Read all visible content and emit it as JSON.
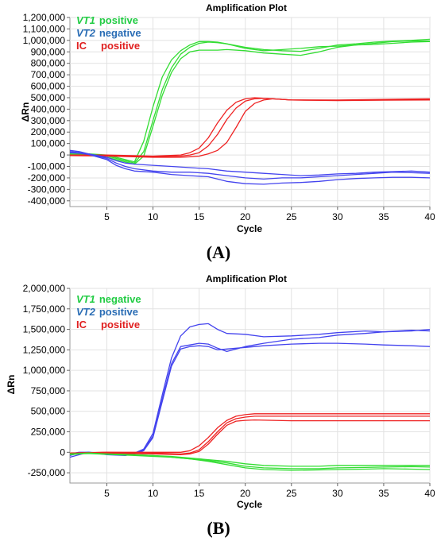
{
  "figure": {
    "panel_labels": [
      "(A)",
      "(B)"
    ]
  },
  "chart_data": [
    {
      "type": "line",
      "title": "Amplification Plot",
      "xlabel": "Cycle",
      "ylabel": "ΔRn",
      "xlim": [
        1,
        40
      ],
      "ylim": [
        -450000,
        1200000
      ],
      "xticks": [
        5,
        10,
        15,
        20,
        25,
        30,
        35,
        40
      ],
      "xtick_labels": [
        "5",
        "10",
        "15",
        "20",
        "25",
        "30",
        "35",
        "40"
      ],
      "yticks": [
        1200000,
        1100000,
        1000000,
        900000,
        800000,
        700000,
        600000,
        500000,
        400000,
        300000,
        200000,
        100000,
        0,
        -100000,
        -200000,
        -300000,
        -400000
      ],
      "ytick_labels": [
        "1,200,000",
        "1,100,000",
        "1,000,000",
        "900,000",
        "800,000",
        "700,000",
        "600,000",
        "500,000",
        "400,000",
        "300,000",
        "200,000",
        "100,000",
        "0",
        "-100,000",
        "-200,000",
        "-300,000",
        "-400,000"
      ],
      "legend": [
        {
          "target": "VT1",
          "status": "positive",
          "color": "#22cc44"
        },
        {
          "target": "VT2",
          "status": "negative",
          "color": "#2a6db5"
        },
        {
          "target": "IC",
          "status": "positive",
          "color": "#e02020"
        }
      ],
      "legend_position": "top-left",
      "grid": true,
      "series": [
        {
          "color": "#33dd33",
          "x": [
            1,
            3,
            5,
            7,
            8,
            9,
            10,
            11,
            12,
            13,
            14,
            15,
            16,
            17,
            18,
            20,
            22,
            24,
            26,
            28,
            30,
            32,
            34,
            36,
            38,
            40
          ],
          "y": [
            20000,
            10000,
            0,
            -40000,
            -60000,
            120000,
            420000,
            680000,
            830000,
            910000,
            960000,
            990000,
            990000,
            985000,
            970000,
            940000,
            920000,
            910000,
            905000,
            930000,
            960000,
            970000,
            985000,
            995000,
            1000000,
            1010000
          ]
        },
        {
          "color": "#33dd33",
          "x": [
            1,
            3,
            5,
            7,
            8,
            9,
            10,
            11,
            12,
            13,
            14,
            15,
            16,
            17,
            18,
            20,
            22,
            24,
            26,
            28,
            30,
            32,
            34,
            36,
            38,
            40
          ],
          "y": [
            10000,
            5000,
            -10000,
            -50000,
            -70000,
            30000,
            300000,
            570000,
            760000,
            880000,
            940000,
            975000,
            985000,
            980000,
            970000,
            930000,
            910000,
            920000,
            930000,
            945000,
            950000,
            960000,
            965000,
            975000,
            985000,
            990000
          ]
        },
        {
          "color": "#33dd33",
          "x": [
            1,
            3,
            5,
            7,
            8,
            9,
            10,
            11,
            12,
            13,
            14,
            15,
            16,
            17,
            18,
            20,
            22,
            24,
            26,
            28,
            30,
            32,
            34,
            36,
            38,
            40
          ],
          "y": [
            5000,
            0,
            -20000,
            -60000,
            -80000,
            -10000,
            250000,
            520000,
            720000,
            840000,
            900000,
            915000,
            915000,
            915000,
            920000,
            910000,
            890000,
            880000,
            870000,
            900000,
            940000,
            960000,
            975000,
            990000,
            995000,
            995000
          ]
        },
        {
          "color": "#ee2222",
          "x": [
            1,
            5,
            10,
            13,
            14,
            15,
            16,
            17,
            18,
            19,
            20,
            21,
            22,
            23,
            25,
            30,
            35,
            40
          ],
          "y": [
            0,
            0,
            -10000,
            0,
            20000,
            60000,
            150000,
            280000,
            390000,
            460000,
            490000,
            500000,
            495000,
            490000,
            480000,
            480000,
            485000,
            490000
          ]
        },
        {
          "color": "#ee2222",
          "x": [
            1,
            5,
            10,
            13,
            14,
            15,
            16,
            17,
            18,
            19,
            20,
            21,
            22,
            23,
            25,
            30,
            35,
            40
          ],
          "y": [
            0,
            -5000,
            -15000,
            -10000,
            0,
            20000,
            80000,
            180000,
            310000,
            410000,
            470000,
            490000,
            495000,
            490000,
            480000,
            478000,
            480000,
            485000
          ]
        },
        {
          "color": "#ee2222",
          "x": [
            1,
            5,
            10,
            13,
            14,
            15,
            16,
            17,
            18,
            19,
            20,
            21,
            22,
            23,
            25,
            30,
            35,
            40
          ],
          "y": [
            -5000,
            -10000,
            -20000,
            -20000,
            -15000,
            -10000,
            10000,
            40000,
            110000,
            240000,
            380000,
            450000,
            480000,
            490000,
            480000,
            475000,
            478000,
            480000
          ]
        },
        {
          "color": "#4444ee",
          "x": [
            1,
            2,
            3,
            5,
            6,
            7,
            8,
            10,
            12,
            14,
            16,
            18,
            20,
            22,
            24,
            26,
            28,
            30,
            32,
            34,
            36,
            38,
            40
          ],
          "y": [
            40000,
            30000,
            10000,
            -20000,
            -50000,
            -70000,
            -80000,
            -90000,
            -100000,
            -110000,
            -120000,
            -140000,
            -150000,
            -160000,
            -170000,
            -180000,
            -175000,
            -165000,
            -160000,
            -150000,
            -145000,
            -140000,
            -150000
          ]
        },
        {
          "color": "#4444ee",
          "x": [
            1,
            2,
            3,
            5,
            6,
            7,
            8,
            10,
            12,
            14,
            16,
            18,
            20,
            22,
            24,
            26,
            28,
            30,
            32,
            34,
            36,
            38,
            40
          ],
          "y": [
            30000,
            20000,
            10000,
            -30000,
            -70000,
            -100000,
            -120000,
            -140000,
            -150000,
            -150000,
            -160000,
            -180000,
            -200000,
            -210000,
            -200000,
            -200000,
            -190000,
            -180000,
            -170000,
            -160000,
            -150000,
            -155000,
            -160000
          ]
        },
        {
          "color": "#4444ee",
          "x": [
            1,
            2,
            3,
            5,
            6,
            7,
            8,
            10,
            12,
            14,
            16,
            18,
            20,
            22,
            24,
            26,
            28,
            30,
            32,
            34,
            36,
            38,
            40
          ],
          "y": [
            20000,
            15000,
            5000,
            -40000,
            -90000,
            -120000,
            -140000,
            -150000,
            -170000,
            -180000,
            -190000,
            -230000,
            -250000,
            -255000,
            -245000,
            -240000,
            -230000,
            -215000,
            -205000,
            -200000,
            -195000,
            -195000,
            -200000
          ]
        }
      ]
    },
    {
      "type": "line",
      "title": "Amplification Plot",
      "xlabel": "Cycle",
      "ylabel": "ΔRn",
      "xlim": [
        1,
        40
      ],
      "ylim": [
        -375000,
        2000000
      ],
      "xticks": [
        5,
        10,
        15,
        20,
        25,
        30,
        35,
        40
      ],
      "xtick_labels": [
        "5",
        "10",
        "15",
        "20",
        "25",
        "30",
        "35",
        "40"
      ],
      "yticks": [
        2000000,
        1750000,
        1500000,
        1250000,
        1000000,
        750000,
        500000,
        250000,
        0,
        -250000
      ],
      "ytick_labels": [
        "2,000,000",
        "1,750,000",
        "1,500,000",
        "1,250,000",
        "1,000,000",
        "750,000",
        "500,000",
        "250,000",
        "0",
        "-250,000"
      ],
      "legend": [
        {
          "target": "VT1",
          "status": "negative",
          "color": "#22cc44"
        },
        {
          "target": "VT2",
          "status": "positive",
          "color": "#2a6db5"
        },
        {
          "target": "IC",
          "status": "positive",
          "color": "#e02020"
        }
      ],
      "legend_position": "top-left",
      "grid": true,
      "series": [
        {
          "color": "#4444ee",
          "x": [
            1,
            2,
            3,
            5,
            7,
            8,
            9,
            10,
            11,
            12,
            13,
            14,
            15,
            16,
            17,
            18,
            20,
            22,
            25,
            28,
            30,
            33,
            35,
            38,
            40
          ],
          "y": [
            -40000,
            -10000,
            0,
            -10000,
            -20000,
            -10000,
            40000,
            230000,
            700000,
            1150000,
            1420000,
            1530000,
            1560000,
            1570000,
            1500000,
            1450000,
            1440000,
            1410000,
            1420000,
            1440000,
            1460000,
            1480000,
            1470000,
            1490000,
            1480000
          ]
        },
        {
          "color": "#4444ee",
          "x": [
            1,
            2,
            3,
            5,
            7,
            8,
            9,
            10,
            11,
            12,
            13,
            14,
            15,
            16,
            17,
            18,
            20,
            22,
            25,
            28,
            30,
            33,
            35,
            38,
            40
          ],
          "y": [
            -20000,
            0,
            0,
            -20000,
            -30000,
            -10000,
            30000,
            200000,
            650000,
            1080000,
            1290000,
            1310000,
            1330000,
            1320000,
            1270000,
            1230000,
            1290000,
            1330000,
            1380000,
            1400000,
            1430000,
            1450000,
            1470000,
            1480000,
            1500000
          ]
        },
        {
          "color": "#4444ee",
          "x": [
            1,
            2,
            3,
            5,
            7,
            8,
            9,
            10,
            11,
            12,
            13,
            14,
            15,
            16,
            17,
            18,
            20,
            22,
            25,
            28,
            30,
            33,
            35,
            38,
            40
          ],
          "y": [
            -60000,
            -30000,
            0,
            -30000,
            -40000,
            -20000,
            20000,
            180000,
            620000,
            1050000,
            1260000,
            1290000,
            1300000,
            1290000,
            1250000,
            1260000,
            1280000,
            1300000,
            1320000,
            1330000,
            1330000,
            1320000,
            1310000,
            1300000,
            1290000
          ]
        },
        {
          "color": "#ee2222",
          "x": [
            1,
            5,
            10,
            13,
            14,
            15,
            16,
            17,
            18,
            19,
            20,
            21,
            23,
            25,
            30,
            35,
            40
          ],
          "y": [
            -10000,
            0,
            0,
            0,
            20000,
            80000,
            180000,
            300000,
            390000,
            440000,
            460000,
            470000,
            470000,
            470000,
            470000,
            470000,
            470000
          ]
        },
        {
          "color": "#ee2222",
          "x": [
            1,
            5,
            10,
            13,
            14,
            15,
            16,
            17,
            18,
            19,
            20,
            21,
            23,
            25,
            30,
            35,
            40
          ],
          "y": [
            -10000,
            0,
            -10000,
            -20000,
            -10000,
            30000,
            130000,
            250000,
            360000,
            410000,
            430000,
            440000,
            440000,
            440000,
            440000,
            440000,
            440000
          ]
        },
        {
          "color": "#ee2222",
          "x": [
            1,
            5,
            10,
            13,
            14,
            15,
            16,
            17,
            18,
            19,
            20,
            21,
            23,
            25,
            30,
            35,
            40
          ],
          "y": [
            -20000,
            -10000,
            -20000,
            -30000,
            -20000,
            10000,
            100000,
            220000,
            330000,
            380000,
            390000,
            395000,
            390000,
            385000,
            385000,
            385000,
            385000
          ]
        },
        {
          "color": "#33dd33",
          "x": [
            1,
            3,
            5,
            8,
            10,
            12,
            14,
            16,
            18,
            20,
            22,
            25,
            28,
            30,
            33,
            35,
            38,
            40
          ],
          "y": [
            -30000,
            -10000,
            -20000,
            -30000,
            -40000,
            -50000,
            -70000,
            -90000,
            -110000,
            -140000,
            -160000,
            -170000,
            -170000,
            -160000,
            -160000,
            -160000,
            -160000,
            -160000
          ]
        },
        {
          "color": "#33dd33",
          "x": [
            1,
            3,
            5,
            8,
            10,
            12,
            14,
            16,
            18,
            20,
            22,
            25,
            28,
            30,
            33,
            35,
            38,
            40
          ],
          "y": [
            -20000,
            -10000,
            -20000,
            -30000,
            -40000,
            -60000,
            -80000,
            -100000,
            -130000,
            -170000,
            -190000,
            -200000,
            -200000,
            -190000,
            -185000,
            -180000,
            -175000,
            -180000
          ]
        },
        {
          "color": "#33dd33",
          "x": [
            1,
            3,
            5,
            8,
            10,
            12,
            14,
            16,
            18,
            20,
            22,
            25,
            28,
            30,
            33,
            35,
            38,
            40
          ],
          "y": [
            -20000,
            -15000,
            -25000,
            -40000,
            -50000,
            -60000,
            -80000,
            -110000,
            -150000,
            -190000,
            -210000,
            -220000,
            -215000,
            -210000,
            -205000,
            -200000,
            -205000,
            -210000
          ]
        }
      ]
    }
  ]
}
